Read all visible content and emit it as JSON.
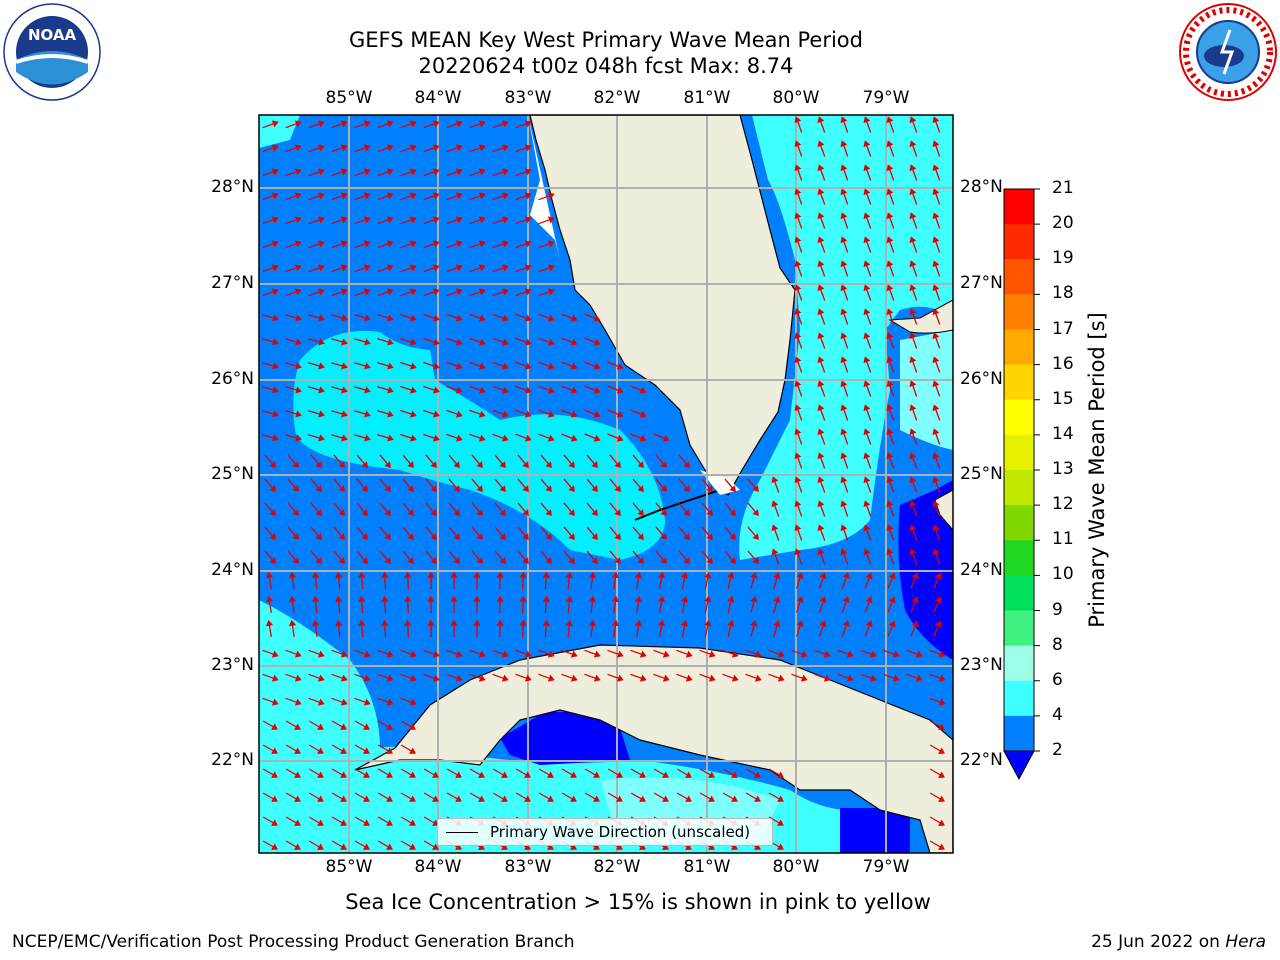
{
  "title": {
    "line1": "GEFS MEAN Key West Primary Wave Mean Period",
    "line2": "20220624 t00z 048h fcst   Max: 8.74"
  },
  "map": {
    "lon_labels": [
      "85°W",
      "84°W",
      "83°W",
      "82°W",
      "81°W",
      "80°W",
      "79°W"
    ],
    "lat_labels": [
      "28°N",
      "27°N",
      "26°N",
      "25°N",
      "24°N",
      "23°N",
      "22°N"
    ],
    "legend_label": "Primary Wave Direction (unscaled)"
  },
  "colorbar": {
    "title": "Primary Wave Mean Period [s]",
    "ticks": [
      "21",
      "20",
      "19",
      "18",
      "17",
      "16",
      "15",
      "14",
      "13",
      "12",
      "11",
      "10",
      "9",
      "8",
      "6",
      "4",
      "2"
    ],
    "colors": [
      "#ff0000",
      "#ff2000",
      "#ff4000",
      "#ff6000",
      "#ff8000",
      "#ffa000",
      "#ffc000",
      "#ffe000",
      "#ffff00",
      "#e0f000",
      "#c0e800",
      "#80e000",
      "#40d000",
      "#00cc00",
      "#00e040",
      "#40f080",
      "#9effe8",
      "#80ffff",
      "#40ffff",
      "#00f0ff",
      "#00c0ff",
      "#0080ff",
      "#0000ff"
    ]
  },
  "logos": {
    "noaa": "NOAA",
    "nws": "NATIONAL WEATHER SERVICE"
  },
  "footer": {
    "note": "Sea Ice Concentration > 15% is shown in pink to yellow",
    "left": "NCEP/EMC/Verification Post Processing Product Generation Branch",
    "right_prefix": "25 Jun 2022 on ",
    "right_italic": "Hera"
  }
}
